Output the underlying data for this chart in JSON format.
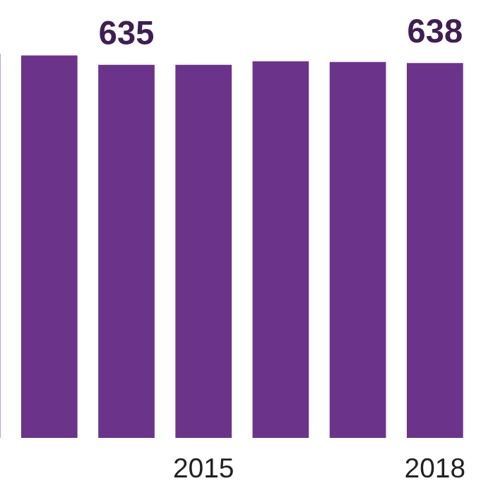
{
  "chart_data": {
    "type": "bar",
    "categories": [
      null,
      null,
      null,
      "2015",
      null,
      null,
      "2018"
    ],
    "values": [
      654,
      651,
      635,
      635,
      641,
      640,
      638
    ],
    "value_labels": [
      null,
      null,
      "635",
      null,
      null,
      null,
      "638"
    ],
    "color": "#6b348a",
    "grid": false
  }
}
